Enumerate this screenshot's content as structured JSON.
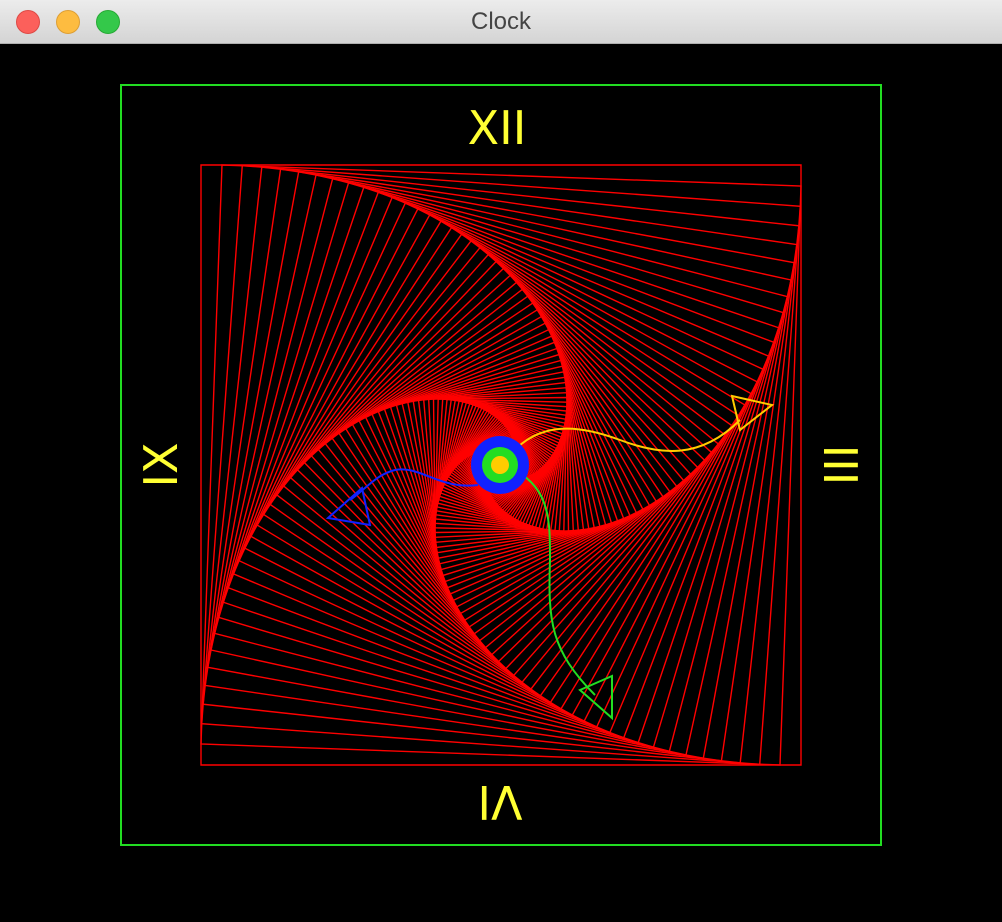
{
  "window": {
    "title": "Clock"
  },
  "clock": {
    "numerals": {
      "twelve": "XII",
      "three": "III",
      "six": "VI",
      "nine": "IX"
    }
  }
}
